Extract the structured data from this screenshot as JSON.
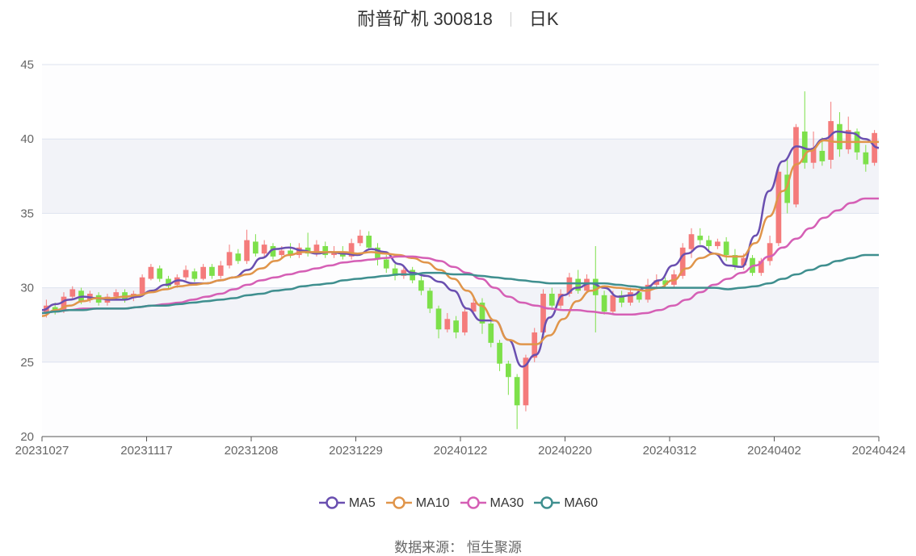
{
  "header": {
    "name": "耐普矿机 300818",
    "period": "日K"
  },
  "source": "数据来源： 恒生聚源",
  "colors": {
    "up": "#f47b7b",
    "down": "#7de04a",
    "band": "#f2f3f8",
    "grid": "#dde3ef"
  },
  "chart_data": {
    "type": "candlestick",
    "ylim": [
      20,
      45
    ],
    "y_ticks": [
      "20",
      "25",
      "30",
      "35",
      "40",
      "45"
    ],
    "x_ticks": [
      "20231027",
      "20231117",
      "20231208",
      "20231229",
      "20240122",
      "20240220",
      "20240312",
      "20240402",
      "20240424"
    ],
    "series": [
      {
        "name": "MA5",
        "color": "#6a4fb0",
        "values": [
          28.5,
          28.9,
          29.2,
          29.4,
          29.3,
          29.2,
          29.2,
          29.4,
          29.8,
          30.2,
          30.5,
          30.3,
          30.3,
          30.5,
          30.7,
          31.2,
          32.0,
          32.6,
          32.7,
          32.5,
          32.3,
          32.4,
          32.3,
          32.2,
          32.6,
          32.4,
          31.6,
          31.0,
          30.8,
          30.4,
          29.8,
          28.6,
          27.8,
          27.8,
          26.5,
          24.7,
          25.5,
          28.0,
          29.5,
          30.0,
          30.3,
          30.0,
          29.4,
          29.5,
          30.0,
          30.5,
          31.5,
          32.3,
          32.8,
          32.3,
          31.5,
          31.4,
          33.5,
          36.5,
          38.5,
          39.5,
          39.3,
          40.0,
          40.5,
          40.4,
          40.0,
          39.4
        ]
      },
      {
        "name": "MA10",
        "color": "#e0954a",
        "values": [
          28.1,
          28.5,
          28.8,
          29.1,
          29.3,
          29.3,
          29.4,
          29.5,
          29.7,
          29.9,
          30.1,
          30.2,
          30.3,
          30.5,
          30.7,
          30.9,
          31.3,
          31.8,
          32.2,
          32.4,
          32.4,
          32.4,
          32.4,
          32.3,
          32.4,
          32.3,
          32.2,
          32.0,
          31.7,
          31.2,
          30.6,
          29.8,
          28.8,
          27.8,
          26.5,
          26.2,
          26.2,
          26.8,
          27.9,
          29.1,
          29.8,
          30.1,
          30.0,
          29.9,
          29.8,
          30.0,
          30.5,
          31.3,
          32.0,
          32.3,
          32.1,
          32.1,
          33.0,
          34.8,
          36.5,
          38.3,
          39.2,
          39.9,
          39.8,
          39.8,
          39.8,
          39.8
        ]
      },
      {
        "name": "MA30",
        "color": "#d55fb5",
        "values": [
          28.3,
          28.4,
          28.5,
          28.6,
          28.6,
          28.6,
          28.6,
          28.7,
          28.8,
          28.9,
          29.0,
          29.2,
          29.4,
          29.6,
          29.9,
          30.2,
          30.5,
          30.7,
          30.9,
          31.1,
          31.3,
          31.5,
          31.7,
          31.8,
          31.9,
          32.0,
          32.1,
          32.1,
          32.0,
          31.8,
          31.4,
          31.0,
          30.6,
          30.0,
          29.4,
          29.0,
          28.8,
          28.6,
          28.5,
          28.5,
          28.4,
          28.3,
          28.2,
          28.2,
          28.3,
          28.5,
          28.8,
          29.2,
          29.7,
          30.2,
          30.6,
          31.0,
          31.5,
          32.1,
          32.7,
          33.3,
          34.0,
          34.7,
          35.2,
          35.7,
          36.0,
          36.0
        ]
      },
      {
        "name": "MA60",
        "color": "#3f8f8f",
        "values": [
          28.3,
          28.4,
          28.5,
          28.5,
          28.6,
          28.6,
          28.6,
          28.7,
          28.8,
          28.8,
          28.9,
          29.0,
          29.1,
          29.2,
          29.3,
          29.5,
          29.6,
          29.8,
          29.9,
          30.1,
          30.2,
          30.3,
          30.5,
          30.6,
          30.7,
          30.8,
          30.9,
          30.9,
          31.0,
          31.0,
          30.9,
          30.9,
          30.8,
          30.7,
          30.6,
          30.5,
          30.4,
          30.3,
          30.3,
          30.3,
          30.3,
          30.3,
          30.2,
          30.1,
          30.0,
          30.0,
          30.0,
          30.0,
          30.0,
          30.0,
          29.9,
          30.0,
          30.1,
          30.3,
          30.6,
          30.9,
          31.2,
          31.5,
          31.8,
          32.0,
          32.2,
          32.2
        ]
      }
    ],
    "candles": [
      [
        28.3,
        28.8,
        28.0,
        29.2
      ],
      [
        28.7,
        28.4,
        28.2,
        29.0
      ],
      [
        28.5,
        29.4,
        28.3,
        29.7
      ],
      [
        29.4,
        29.9,
        29.2,
        30.1
      ],
      [
        29.8,
        29.1,
        28.9,
        30.0
      ],
      [
        29.2,
        29.6,
        29.0,
        29.8
      ],
      [
        29.5,
        29.0,
        28.8,
        29.7
      ],
      [
        29.0,
        29.4,
        28.8,
        29.6
      ],
      [
        29.4,
        29.7,
        29.2,
        29.9
      ],
      [
        29.7,
        29.2,
        29.0,
        29.9
      ],
      [
        29.3,
        29.6,
        29.1,
        29.8
      ],
      [
        29.6,
        30.7,
        29.5,
        30.9
      ],
      [
        30.6,
        31.4,
        30.5,
        31.6
      ],
      [
        31.3,
        30.6,
        30.4,
        31.5
      ],
      [
        30.6,
        30.1,
        29.9,
        30.8
      ],
      [
        30.2,
        30.7,
        30.0,
        30.9
      ],
      [
        30.7,
        31.2,
        30.5,
        31.5
      ],
      [
        31.1,
        30.6,
        30.4,
        31.3
      ],
      [
        30.6,
        31.4,
        30.5,
        31.6
      ],
      [
        31.4,
        30.8,
        30.6,
        31.6
      ],
      [
        30.8,
        31.5,
        30.6,
        31.8
      ],
      [
        31.5,
        32.4,
        31.3,
        32.9
      ],
      [
        32.3,
        31.8,
        31.6,
        32.6
      ],
      [
        31.8,
        33.2,
        31.6,
        33.9
      ],
      [
        33.1,
        32.3,
        32.1,
        33.6
      ],
      [
        32.3,
        32.9,
        32.1,
        33.2
      ],
      [
        32.8,
        32.1,
        31.9,
        33.0
      ],
      [
        32.2,
        32.5,
        32.0,
        32.8
      ],
      [
        32.5,
        32.2,
        32.0,
        33.0
      ],
      [
        32.2,
        32.7,
        32.0,
        33.0
      ],
      [
        32.7,
        32.3,
        32.1,
        33.7
      ],
      [
        32.3,
        32.9,
        32.1,
        33.2
      ],
      [
        32.8,
        32.2,
        32.0,
        33.1
      ],
      [
        32.2,
        32.4,
        32.0,
        32.8
      ],
      [
        32.4,
        32.1,
        31.9,
        32.8
      ],
      [
        32.1,
        33.0,
        31.9,
        33.3
      ],
      [
        33.0,
        33.5,
        32.8,
        33.9
      ],
      [
        33.5,
        32.7,
        32.5,
        33.8
      ],
      [
        32.7,
        31.9,
        31.5,
        33.0
      ],
      [
        31.9,
        31.3,
        31.0,
        32.2
      ],
      [
        31.3,
        30.8,
        30.5,
        31.6
      ],
      [
        30.8,
        31.2,
        30.6,
        31.5
      ],
      [
        31.2,
        30.5,
        30.3,
        31.4
      ],
      [
        30.5,
        29.8,
        29.5,
        30.8
      ],
      [
        29.8,
        28.6,
        28.3,
        30.0
      ],
      [
        28.6,
        27.2,
        26.6,
        28.8
      ],
      [
        27.2,
        27.9,
        27.0,
        28.3
      ],
      [
        27.8,
        27.0,
        26.6,
        28.1
      ],
      [
        27.0,
        28.4,
        26.8,
        28.6
      ],
      [
        28.4,
        29.0,
        28.2,
        29.3
      ],
      [
        29.0,
        27.6,
        26.9,
        29.3
      ],
      [
        27.6,
        26.3,
        26.0,
        27.8
      ],
      [
        26.3,
        24.9,
        24.4,
        26.5
      ],
      [
        24.9,
        24.0,
        22.8,
        25.1
      ],
      [
        24.0,
        22.1,
        20.5,
        24.2
      ],
      [
        22.1,
        25.3,
        21.7,
        25.5
      ],
      [
        25.3,
        27.0,
        25.0,
        27.3
      ],
      [
        27.0,
        29.6,
        26.8,
        29.9
      ],
      [
        29.6,
        28.8,
        28.5,
        30.0
      ],
      [
        28.8,
        29.6,
        28.6,
        29.9
      ],
      [
        29.6,
        30.7,
        29.4,
        31.0
      ],
      [
        30.6,
        29.8,
        29.6,
        31.2
      ],
      [
        29.8,
        30.6,
        29.6,
        30.9
      ],
      [
        30.6,
        29.5,
        27.0,
        32.8
      ],
      [
        29.5,
        28.4,
        28.2,
        29.8
      ],
      [
        28.4,
        29.5,
        28.2,
        29.8
      ],
      [
        29.5,
        29.0,
        28.7,
        29.8
      ],
      [
        29.0,
        29.7,
        28.8,
        30.0
      ],
      [
        29.7,
        29.2,
        29.0,
        30.0
      ],
      [
        29.2,
        30.2,
        29.0,
        30.6
      ],
      [
        30.2,
        30.5,
        29.9,
        30.9
      ],
      [
        30.5,
        30.2,
        30.0,
        30.7
      ],
      [
        30.2,
        30.9,
        30.0,
        31.2
      ],
      [
        30.8,
        32.7,
        30.6,
        33.0
      ],
      [
        32.6,
        33.6,
        32.0,
        34.0
      ],
      [
        33.5,
        33.2,
        32.9,
        34.0
      ],
      [
        33.2,
        32.8,
        32.5,
        33.5
      ],
      [
        32.8,
        33.1,
        32.6,
        33.3
      ],
      [
        33.1,
        32.2,
        31.8,
        33.4
      ],
      [
        32.2,
        31.5,
        31.2,
        32.6
      ],
      [
        31.5,
        32.0,
        31.2,
        32.3
      ],
      [
        32.0,
        31.0,
        30.8,
        32.2
      ],
      [
        31.0,
        31.8,
        30.8,
        32.0
      ],
      [
        31.8,
        33.0,
        31.5,
        33.5
      ],
      [
        33.0,
        37.8,
        32.8,
        38.3
      ],
      [
        37.6,
        35.7,
        35.0,
        38.6
      ],
      [
        35.6,
        40.8,
        35.4,
        41.0
      ],
      [
        40.5,
        38.4,
        38.0,
        43.2
      ],
      [
        38.4,
        39.4,
        38.0,
        40.5
      ],
      [
        39.2,
        38.5,
        38.2,
        40.1
      ],
      [
        38.6,
        41.2,
        38.0,
        42.5
      ],
      [
        41.0,
        39.3,
        38.8,
        41.8
      ],
      [
        39.3,
        40.6,
        39.0,
        41.5
      ],
      [
        40.5,
        39.1,
        38.6,
        40.7
      ],
      [
        39.1,
        38.3,
        37.8,
        39.6
      ],
      [
        38.4,
        40.4,
        38.2,
        40.6
      ]
    ]
  }
}
